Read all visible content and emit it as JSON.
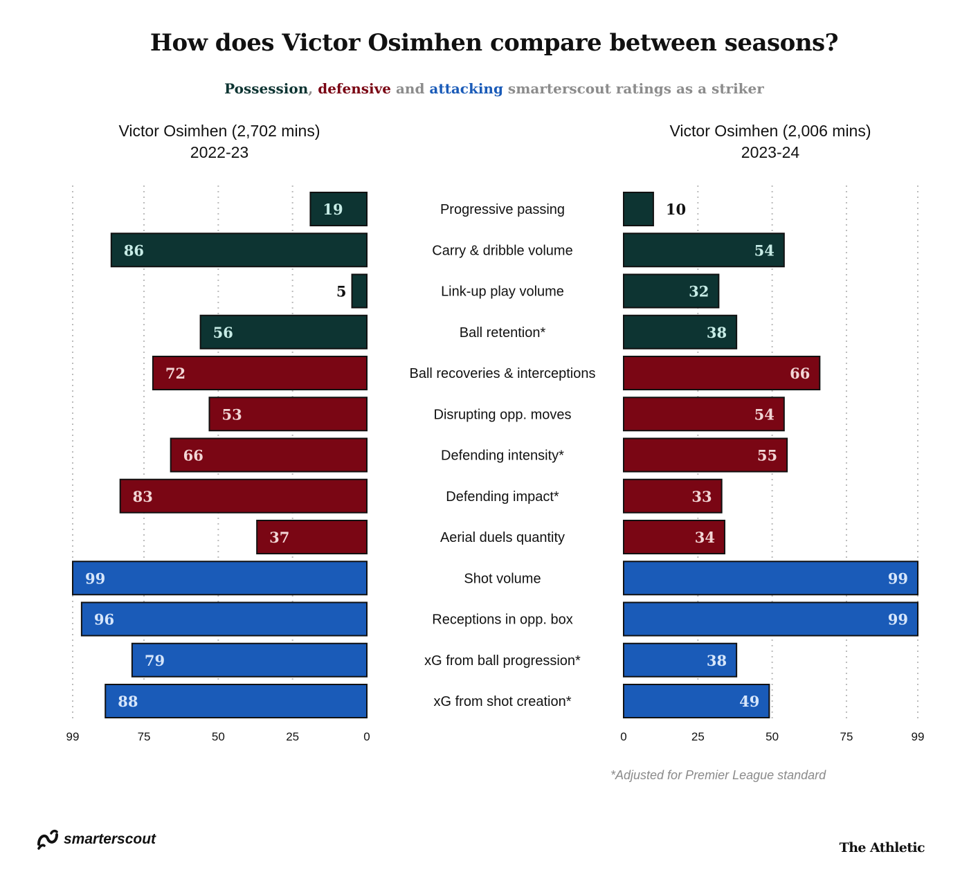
{
  "chart_data": {
    "type": "bar",
    "title": "How does Victor Osimhen compare between seasons?",
    "subtitle_parts": [
      {
        "text": "Possession",
        "color": "#0d3432"
      },
      {
        "text": ", ",
        "color": "#8c8c8c"
      },
      {
        "text": "defensive",
        "color": "#7a0614"
      },
      {
        "text": " and ",
        "color": "#8c8c8c"
      },
      {
        "text": "attacking",
        "color": "#1a5bb8"
      },
      {
        "text": " smarterscout ratings as a striker",
        "color": "#8c8c8c"
      }
    ],
    "categories": [
      "Progressive passing",
      "Carry & dribble volume",
      "Link-up play volume",
      "Ball retention*",
      "Ball recoveries & interceptions",
      "Disrupting opp. moves",
      "Defending intensity*",
      "Defending impact*",
      "Aerial duels quantity",
      "Shot volume",
      "Receptions in opp. box",
      "xG from ball progression*",
      "xG from shot creation*"
    ],
    "groups": [
      "possession",
      "possession",
      "possession",
      "possession",
      "defensive",
      "defensive",
      "defensive",
      "defensive",
      "defensive",
      "attacking",
      "attacking",
      "attacking",
      "attacking"
    ],
    "group_colors": {
      "possession": "#0d3432",
      "defensive": "#7a0614",
      "attacking": "#1a5bb8"
    },
    "label_colors": {
      "possession": "#c7ece6",
      "defensive": "#f2d6d6",
      "attacking": "#d7e6fa"
    },
    "series": [
      {
        "name_line1": "Victor Osimhen (2,702 mins)",
        "name_line2": "2022-23",
        "values": [
          19,
          86,
          5,
          56,
          72,
          53,
          66,
          83,
          37,
          99,
          96,
          79,
          88
        ]
      },
      {
        "name_line1": "Victor Osimhen (2,006 mins)",
        "name_line2": "2023-24",
        "values": [
          10,
          54,
          32,
          38,
          66,
          54,
          55,
          33,
          34,
          99,
          99,
          38,
          49
        ]
      }
    ],
    "xlim": [
      0,
      99
    ],
    "ticks": [
      0,
      25,
      50,
      75,
      99
    ],
    "grid": true
  },
  "footnote": "*Adjusted for Premier League standard",
  "brand_left": "smarterscout",
  "brand_right": "The Athletic"
}
